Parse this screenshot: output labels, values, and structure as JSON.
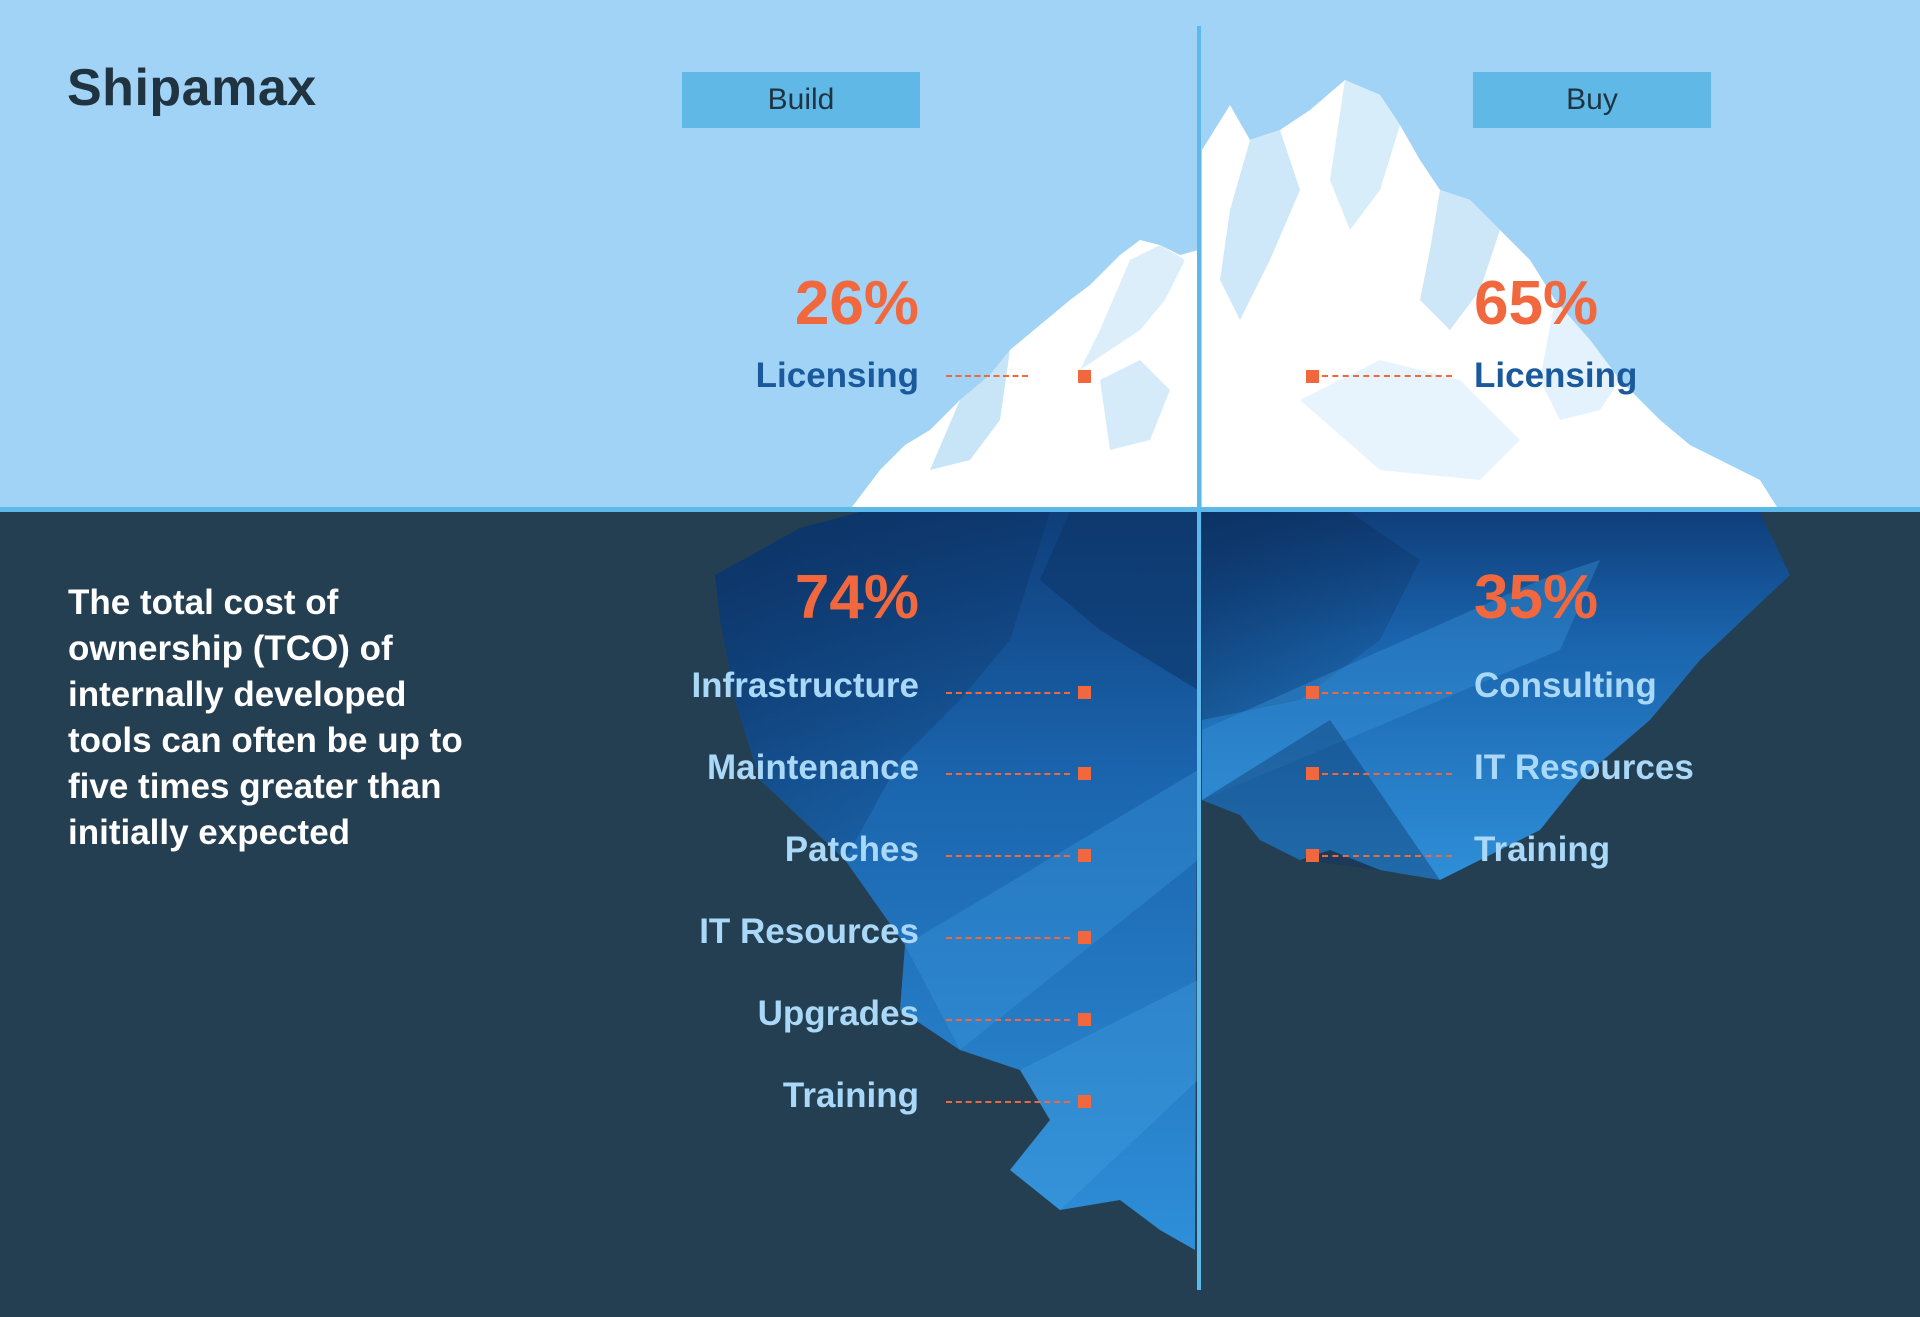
{
  "brand": {
    "name": "Shipamax"
  },
  "columns": {
    "build": {
      "tab_label": "Build",
      "above_percent": "26%",
      "above_items": [
        "Licensing"
      ],
      "below_percent": "74%",
      "below_items": [
        "Infrastructure",
        "Maintenance",
        "Patches",
        "IT Resources",
        "Upgrades",
        "Training"
      ]
    },
    "buy": {
      "tab_label": "Buy",
      "above_percent": "65%",
      "above_items": [
        "Licensing"
      ],
      "below_percent": "35%",
      "below_items": [
        "Consulting",
        "IT Resources",
        "Training"
      ]
    }
  },
  "tco_text": "The total cost of ownership (TCO) of internally developed tools can often be up to five times greater than initially expected",
  "colors": {
    "sky": "#a0d3f6",
    "sea": "#253f52",
    "accent_orange": "#f2683e",
    "label_dark_blue": "#1a5a9c",
    "label_light_blue": "#a9d8f8",
    "tab_blue": "#5fb8e6"
  }
}
